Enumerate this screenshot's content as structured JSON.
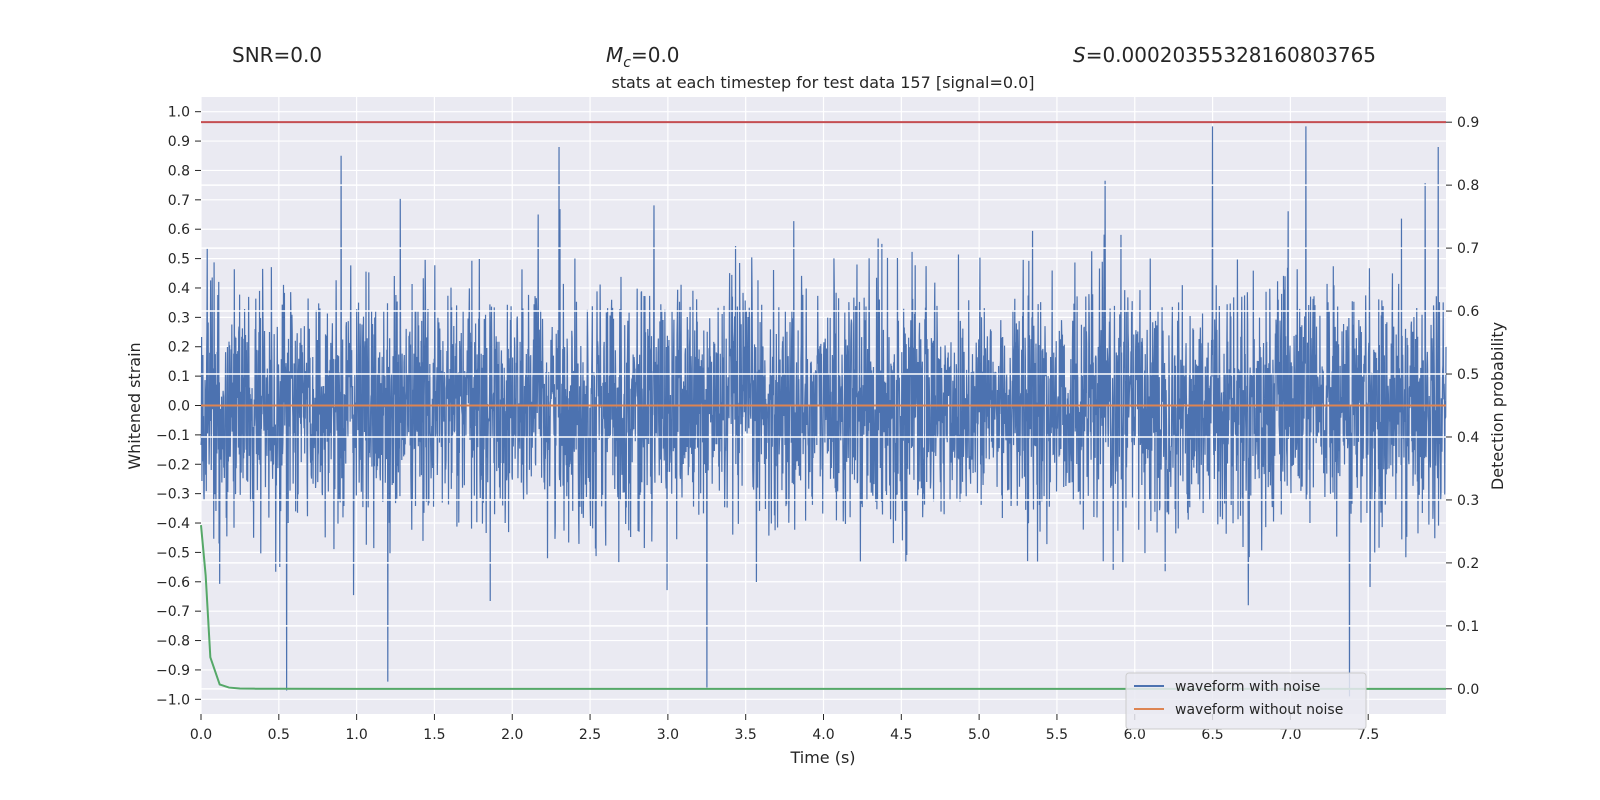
{
  "header": {
    "snr": "SNR=0.0",
    "mc_symbol": "M",
    "mc_sub": "c",
    "mc_value": "=0.0",
    "s_symbol": "S",
    "s_value": "=0.00020355328160803765"
  },
  "chart_data": {
    "type": "line",
    "title": "stats at each timestep for test data 157 [signal=0.0]",
    "xlabel": "Time (s)",
    "ylabel": "Whitened strain",
    "y2label": "Detection probability",
    "xlim": [
      0.0,
      8.0
    ],
    "ylim": [
      -1.05,
      1.05
    ],
    "y2lim": [
      -0.04,
      0.94
    ],
    "xticks": [
      0.0,
      0.5,
      1.0,
      1.5,
      2.0,
      2.5,
      3.0,
      3.5,
      4.0,
      4.5,
      5.0,
      5.5,
      6.0,
      6.5,
      7.0,
      7.5
    ],
    "xtick_labels": [
      "0.0",
      "0.5",
      "1.0",
      "1.5",
      "2.0",
      "2.5",
      "3.0",
      "3.5",
      "4.0",
      "4.5",
      "5.0",
      "5.5",
      "6.0",
      "6.5",
      "7.0",
      "7.5"
    ],
    "yticks": [
      1.0,
      0.9,
      0.8,
      0.7,
      0.6,
      0.5,
      0.4,
      0.3,
      0.2,
      0.1,
      0.0,
      -0.1,
      -0.2,
      -0.3,
      -0.4,
      -0.5,
      -0.6,
      -0.7,
      -0.8,
      -0.9,
      -1.0
    ],
    "ytick_labels": [
      "1.0",
      "0.9",
      "0.8",
      "0.7",
      "0.6",
      "0.5",
      "0.4",
      "0.3",
      "0.2",
      "0.1",
      "0.0",
      "−0.1",
      "−0.2",
      "−0.3",
      "−0.4",
      "−0.5",
      "−0.6",
      "−0.7",
      "−0.8",
      "−0.9",
      "−1.0"
    ],
    "y2ticks": [
      0.9,
      0.8,
      0.7,
      0.6,
      0.5,
      0.4,
      0.3,
      0.2,
      0.1,
      0.0
    ],
    "y2tick_labels": [
      "0.9",
      "0.8",
      "0.7",
      "0.6",
      "0.5",
      "0.4",
      "0.3",
      "0.2",
      "0.1",
      "0.0"
    ],
    "grid": true,
    "legend_placement": "lower-right",
    "threshold": 0.9,
    "series": [
      {
        "name": "waveform with noise",
        "color": "#4c72b0",
        "style": "dense noise, peaks approx. ±0.55 typical, extremes near +0.95 and −0.97",
        "notable_peaks": [
          {
            "x": 0.55,
            "y": -0.97
          },
          {
            "x": 0.9,
            "y": 0.85
          },
          {
            "x": 1.2,
            "y": -0.94
          },
          {
            "x": 2.3,
            "y": 0.88
          },
          {
            "x": 3.25,
            "y": -0.96
          },
          {
            "x": 6.5,
            "y": 0.95
          },
          {
            "x": 7.1,
            "y": 0.95
          },
          {
            "x": 7.38,
            "y": -0.99
          },
          {
            "x": 7.95,
            "y": 0.88
          }
        ]
      },
      {
        "name": "waveform without noise",
        "color": "#dd8452",
        "x": [
          0.0,
          8.0
        ],
        "y": [
          0.0,
          0.0
        ]
      },
      {
        "axis": "right",
        "color": "#55a868",
        "x": [
          0.0,
          0.03,
          0.06,
          0.12,
          0.18,
          0.25,
          0.35,
          0.5,
          1.0,
          8.0
        ],
        "y": [
          0.26,
          0.18,
          0.05,
          0.007,
          0.002,
          0.0005,
          0.0002,
          0.0001,
          0.0,
          0.0
        ]
      },
      {
        "axis": "right",
        "color": "#c44e52",
        "x": [
          0.0,
          8.0
        ],
        "y": [
          0.9,
          0.9
        ]
      }
    ]
  }
}
